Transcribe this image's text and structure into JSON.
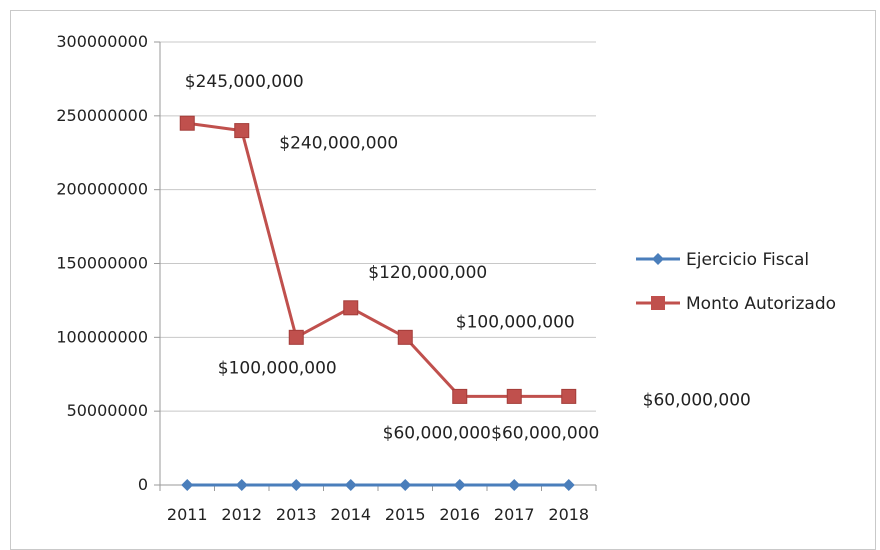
{
  "chart_data": {
    "type": "line",
    "categories": [
      "2011",
      "2012",
      "2013",
      "2014",
      "2015",
      "2016",
      "2017",
      "2018"
    ],
    "y_ticks": [
      "0",
      "50000000",
      "100000000",
      "150000000",
      "200000000",
      "250000000",
      "300000000"
    ],
    "ylim": [
      0,
      300000000
    ],
    "grid": true,
    "legend_position": "right",
    "series": [
      {
        "name": "Ejercicio Fiscal",
        "color": "#4a7ebb",
        "marker": "diamond",
        "values": [
          0,
          0,
          0,
          0,
          0,
          0,
          0,
          0
        ],
        "labels": []
      },
      {
        "name": "Monto Autorizado",
        "color": "#c0504d",
        "marker": "square",
        "values": [
          245000000,
          240000000,
          100000000,
          120000000,
          100000000,
          60000000,
          60000000,
          60000000
        ],
        "labels": [
          "$245,000,000",
          "$240,000,000",
          "$100,000,000",
          "$120,000,000",
          "$100,000,000",
          "$60,000,000",
          "$60,000,000",
          "$60,000,000"
        ]
      }
    ]
  }
}
